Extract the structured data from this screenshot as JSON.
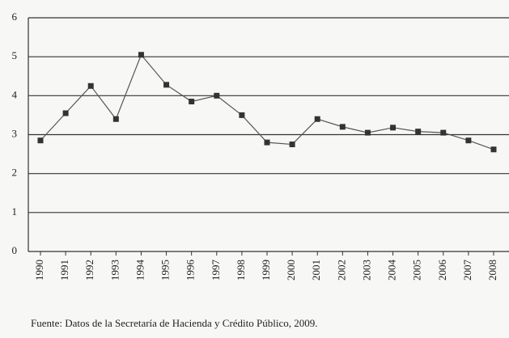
{
  "chart_data": {
    "type": "line",
    "categories": [
      "1990",
      "1991",
      "1992",
      "1993",
      "1994",
      "1995",
      "1996",
      "1997",
      "1998",
      "1999",
      "2000",
      "2001",
      "2002",
      "2003",
      "2004",
      "2005",
      "2006",
      "2007",
      "2008"
    ],
    "series": [
      {
        "color": "#555555",
        "values": [
          2.85,
          3.55,
          4.25,
          3.4,
          5.05,
          4.28,
          3.85,
          4.0,
          3.5,
          2.8,
          2.75,
          3.4,
          3.2,
          3.05,
          3.18,
          3.08,
          3.05,
          2.85,
          2.62
        ]
      }
    ],
    "ylim": [
      0,
      6
    ],
    "yticks": [
      0,
      1,
      2,
      3,
      4,
      5,
      6
    ],
    "grid": true,
    "source": "Fuente: Datos de la Secretaría de Hacienda y Crédito Público, 2009."
  }
}
